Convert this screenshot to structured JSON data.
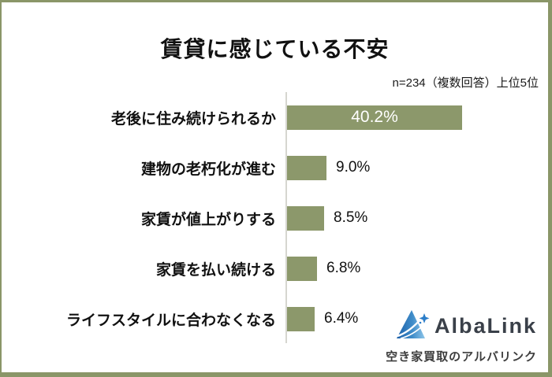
{
  "title": "賃貸に感じている不安",
  "annotation": "n=234（複数回答）上位5位",
  "chart_data": {
    "type": "bar",
    "orientation": "horizontal",
    "title": "賃貸に感じている不安",
    "subtitle": "n=234（複数回答）上位5位",
    "categories": [
      "老後に住み続けられるか",
      "建物の老朽化が進む",
      "家賃が値上がりする",
      "家賃を払い続ける",
      "ライフスタイルに合わなくなる"
    ],
    "values": [
      40.2,
      9.0,
      8.5,
      6.8,
      6.4
    ],
    "value_labels": [
      "40.2%",
      "9.0%",
      "8.5%",
      "6.8%",
      "6.4%"
    ],
    "unit": "%",
    "xlim": [
      0,
      43
    ],
    "grid": false,
    "legend": "none",
    "bar_color": "#8c986b",
    "axis_color": "#d6d6d0",
    "value_label_inside_color": "#ffffff",
    "value_label_outside_color": "#111111"
  },
  "logo": {
    "brand": "AlbaLink",
    "tagline": "空き家買取のアルバリンク",
    "icon": "mountain-triangle-logo",
    "brand_color": "#3a4049",
    "icon_color_dark": "#1b5fa8",
    "icon_color_light": "#6fb5e3",
    "star_color": "#2d7ec9"
  },
  "frame_color": "#8a9668"
}
